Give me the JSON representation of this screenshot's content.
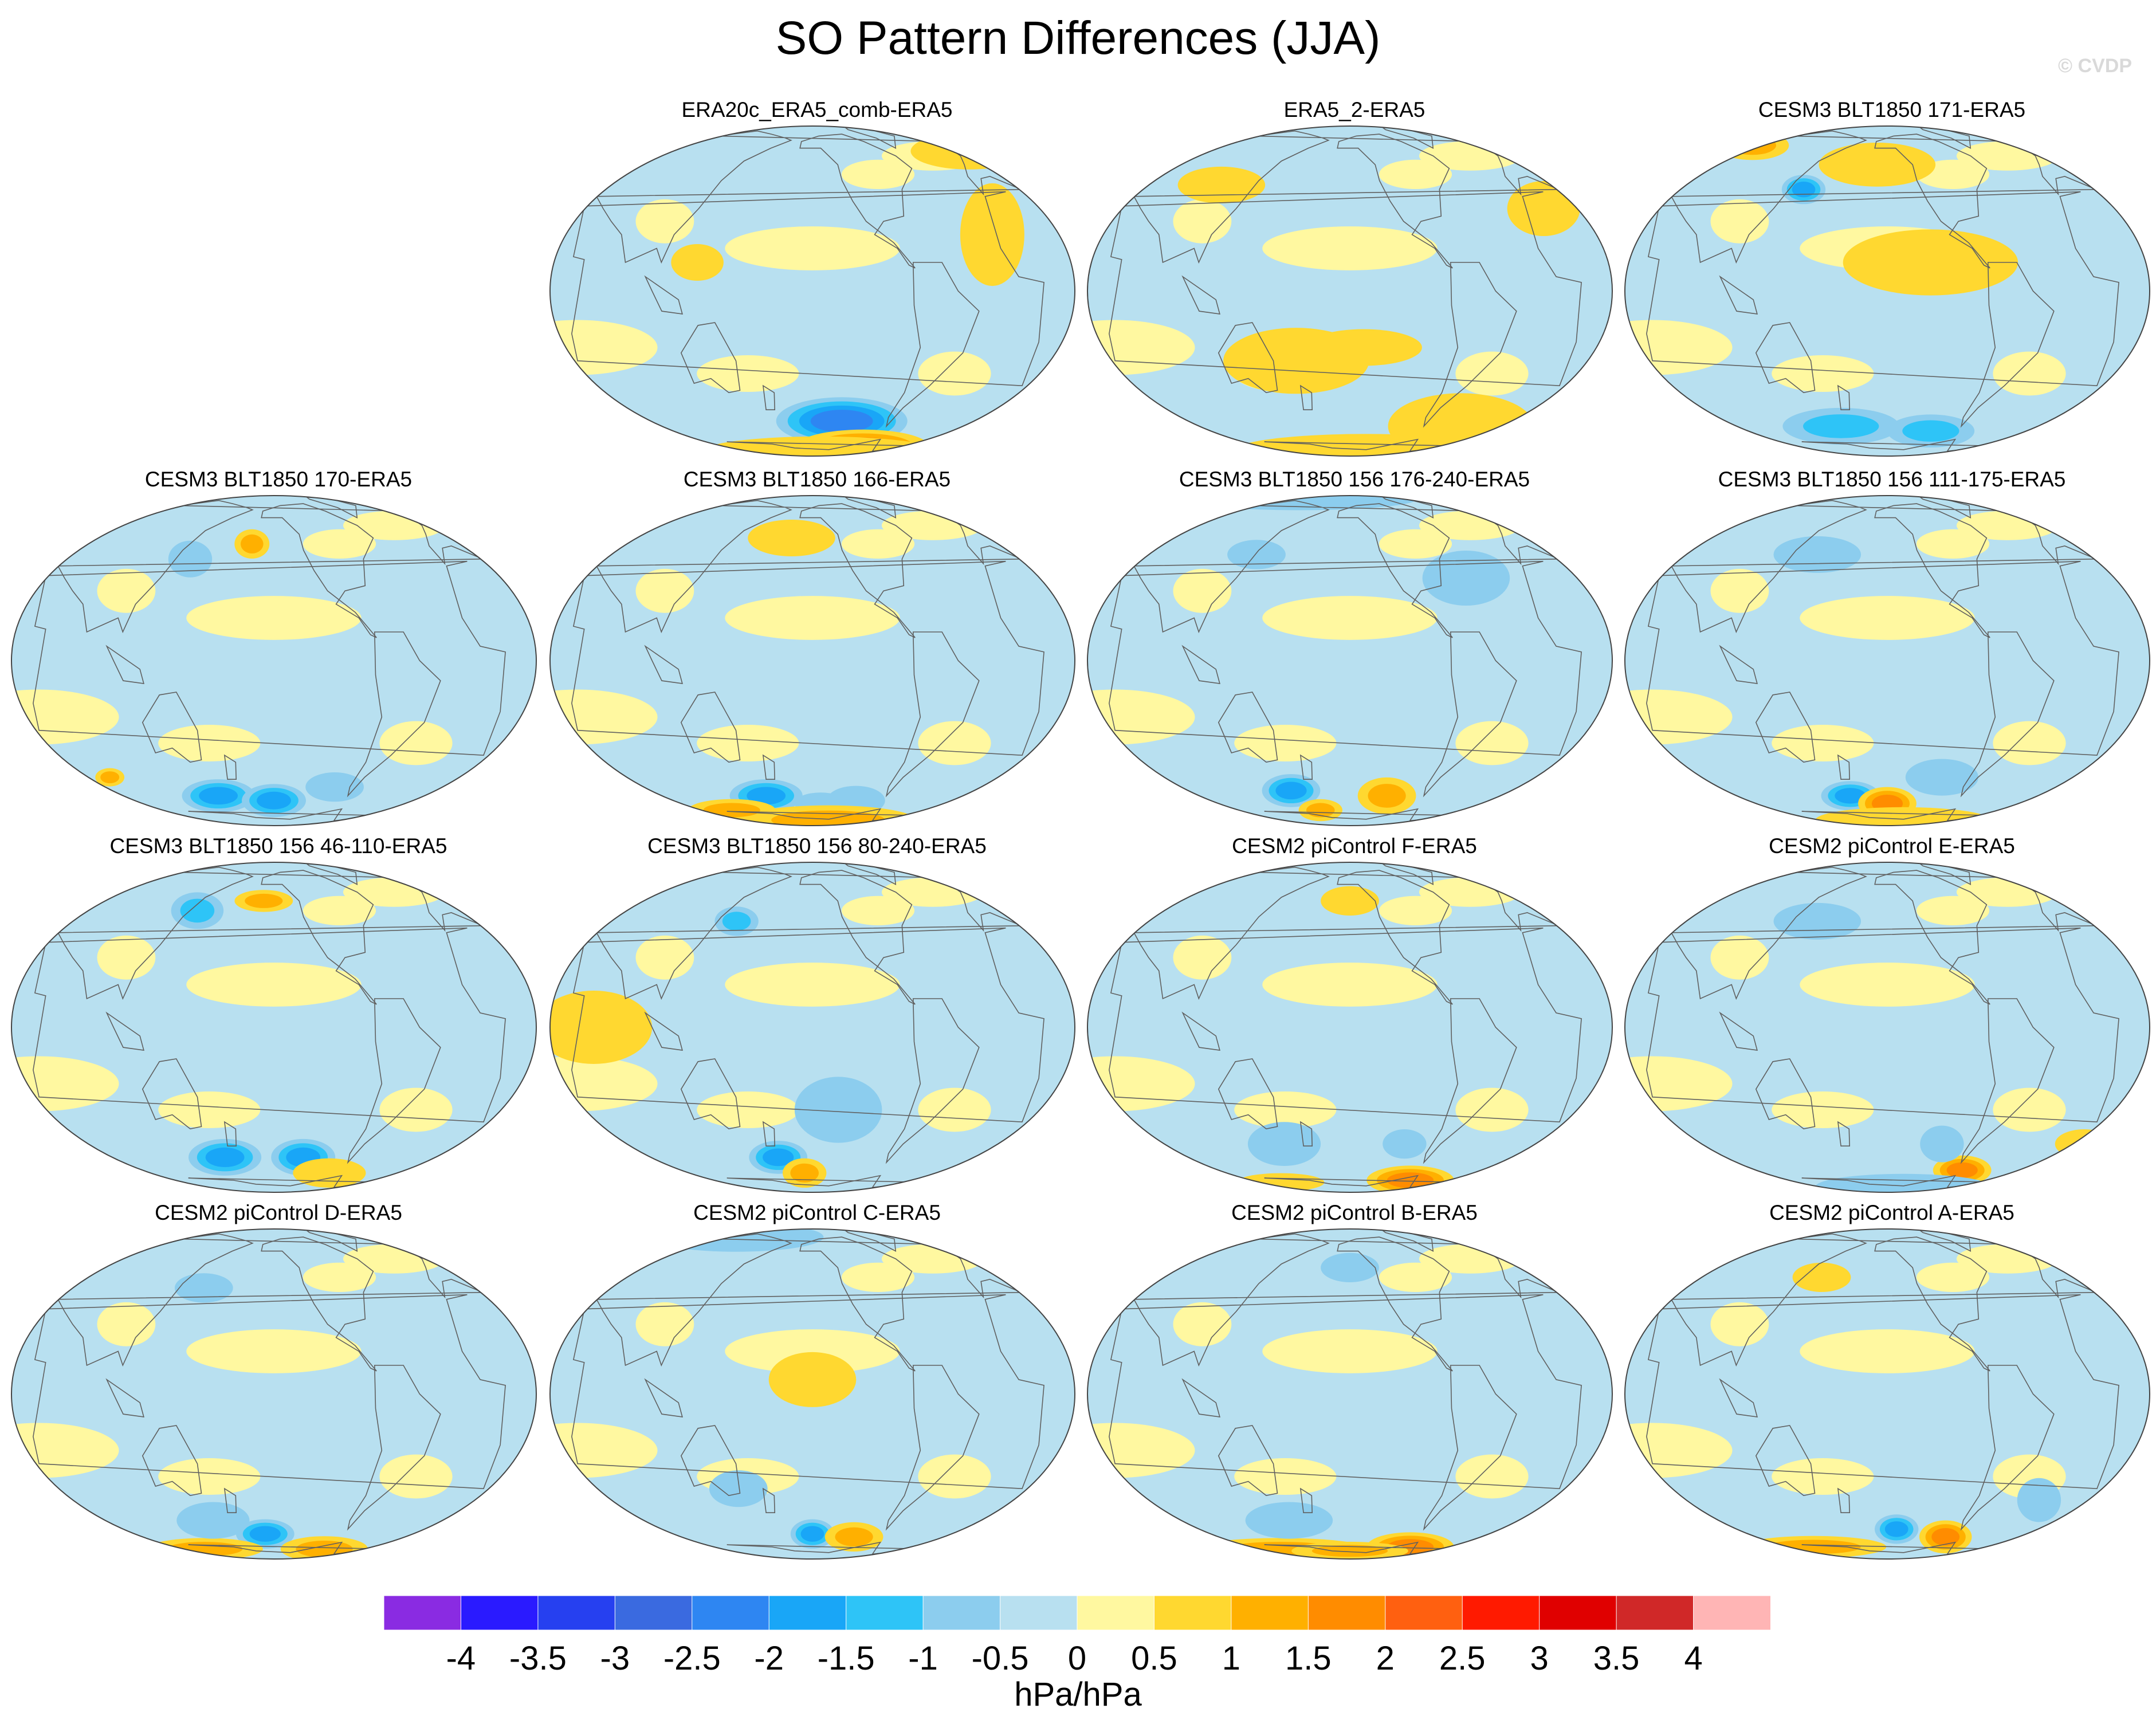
{
  "title": "SO Pattern Differences (JJA)",
  "credit": "© CVDP",
  "panels": [
    {
      "label": "ERA20c_ERA5_comb-ERA5",
      "features": [
        {
          "lon": -120,
          "lat": -52,
          "lev": -2.0,
          "rx": 45,
          "ry": 13
        },
        {
          "lon": -70,
          "lat": -70,
          "lev": 1.5,
          "rx": 45,
          "ry": 9
        },
        {
          "lon": -135,
          "lat": -76,
          "lev": 0.5,
          "rx": 80,
          "ry": 8
        },
        {
          "lon": 30,
          "lat": 58,
          "lev": 0.5,
          "rx": 40,
          "ry": 10
        },
        {
          "lon": -20,
          "lat": 20,
          "lev": 0.5,
          "rx": 22,
          "ry": 28
        },
        {
          "lon": 130,
          "lat": 10,
          "lev": 0.5,
          "rx": 18,
          "ry": 10
        }
      ]
    },
    {
      "label": "ERA5_2-ERA5",
      "features": [
        {
          "lon": 170,
          "lat": -25,
          "lev": 0.5,
          "rx": 50,
          "ry": 18
        },
        {
          "lon": -140,
          "lat": -20,
          "lev": 0.5,
          "rx": 40,
          "ry": 10
        },
        {
          "lon": -30,
          "lat": -55,
          "lev": 0.5,
          "rx": 50,
          "ry": 18
        },
        {
          "lon": -120,
          "lat": -75,
          "lev": 0.5,
          "rx": 90,
          "ry": 9
        },
        {
          "lon": 100,
          "lat": 40,
          "lev": 0.5,
          "rx": 30,
          "ry": 10
        },
        {
          "lon": 0,
          "lat": 30,
          "lev": 0.5,
          "rx": 25,
          "ry": 15
        }
      ]
    },
    {
      "label": "CESM3 BLT1850 171-ERA5",
      "features": [
        {
          "lon": 140,
          "lat": 38,
          "lev": -1.5,
          "rx": 15,
          "ry": 8
        },
        {
          "lon": -160,
          "lat": 50,
          "lev": 0.5,
          "rx": 40,
          "ry": 12
        },
        {
          "lon": 160,
          "lat": -55,
          "lev": -1.0,
          "rx": 40,
          "ry": 10
        },
        {
          "lon": -100,
          "lat": -58,
          "lev": -1.0,
          "rx": 30,
          "ry": 9
        },
        {
          "lon": 40,
          "lat": 62,
          "lev": 1.0,
          "rx": 25,
          "ry": 8
        },
        {
          "lon": -120,
          "lat": 10,
          "lev": 0.5,
          "rx": 60,
          "ry": 18
        }
      ]
    },
    {
      "label": "CESM3 BLT1850 170-ERA5",
      "features": [
        {
          "lon": 150,
          "lat": -55,
          "lev": -1.5,
          "rx": 25,
          "ry": 9
        },
        {
          "lon": -150,
          "lat": -58,
          "lev": -1.5,
          "rx": 22,
          "ry": 9
        },
        {
          "lon": -90,
          "lat": -50,
          "lev": -0.5,
          "rx": 20,
          "ry": 8
        },
        {
          "lon": -170,
          "lat": 45,
          "lev": 1.0,
          "rx": 12,
          "ry": 8
        },
        {
          "lon": 140,
          "lat": 38,
          "lev": -0.5,
          "rx": 15,
          "ry": 10
        },
        {
          "lon": 60,
          "lat": -45,
          "lev": 1.0,
          "rx": 10,
          "ry": 5
        }
      ]
    },
    {
      "label": "CESM3 BLT1850 166-ERA5",
      "features": [
        {
          "lon": 160,
          "lat": -55,
          "lev": -1.5,
          "rx": 25,
          "ry": 9
        },
        {
          "lon": -140,
          "lat": -60,
          "lev": -0.5,
          "rx": 18,
          "ry": 6
        },
        {
          "lon": -100,
          "lat": -58,
          "lev": -0.5,
          "rx": 20,
          "ry": 8
        },
        {
          "lon": -120,
          "lat": -75,
          "lev": 1.0,
          "rx": 60,
          "ry": 8
        },
        {
          "lon": 100,
          "lat": -65,
          "lev": 1.0,
          "rx": 30,
          "ry": 6
        },
        {
          "lon": -170,
          "lat": 48,
          "lev": 0.5,
          "rx": 30,
          "ry": 10
        }
      ]
    },
    {
      "label": "CESM3 BLT1850 156 176-240-ERA5",
      "features": [
        {
          "lon": 150,
          "lat": -52,
          "lev": -1.5,
          "rx": 20,
          "ry": 9
        },
        {
          "lon": -110,
          "lat": -55,
          "lev": 1.0,
          "rx": 20,
          "ry": 10
        },
        {
          "lon": 170,
          "lat": -65,
          "lev": 1.0,
          "rx": 15,
          "ry": 6
        },
        {
          "lon": -60,
          "lat": 30,
          "lev": -0.5,
          "rx": 30,
          "ry": 15
        },
        {
          "lon": 100,
          "lat": 78,
          "lev": -0.5,
          "rx": 80,
          "ry": 6
        },
        {
          "lon": 130,
          "lat": 40,
          "lev": -0.5,
          "rx": 20,
          "ry": 8
        }
      ]
    },
    {
      "label": "CESM3 BLT1850 156 111-175-ERA5",
      "features": [
        {
          "lon": 170,
          "lat": -55,
          "lev": -1.5,
          "rx": 20,
          "ry": 8
        },
        {
          "lon": -150,
          "lat": -60,
          "lev": 1.5,
          "rx": 20,
          "ry": 9
        },
        {
          "lon": -120,
          "lat": -75,
          "lev": 0.5,
          "rx": 60,
          "ry": 7
        },
        {
          "lon": 150,
          "lat": 40,
          "lev": -0.5,
          "rx": 30,
          "ry": 10
        },
        {
          "lon": -100,
          "lat": -45,
          "lev": -0.5,
          "rx": 25,
          "ry": 10
        }
      ]
    },
    {
      "label": "CESM3 BLT1850 156 46-110-ERA5",
      "features": [
        {
          "lon": 160,
          "lat": -52,
          "lev": -1.5,
          "rx": 25,
          "ry": 10
        },
        {
          "lon": -120,
          "lat": -52,
          "lev": -1.5,
          "rx": 22,
          "ry": 10
        },
        {
          "lon": 140,
          "lat": 45,
          "lev": -1.0,
          "rx": 18,
          "ry": 10
        },
        {
          "lon": -160,
          "lat": 50,
          "lev": 1.0,
          "rx": 20,
          "ry": 6
        },
        {
          "lon": -80,
          "lat": -62,
          "lev": 0.5,
          "rx": 25,
          "ry": 8
        }
      ]
    },
    {
      "label": "CESM3 BLT1850 156 80-240-ERA5",
      "features": [
        {
          "lon": 175,
          "lat": -52,
          "lev": -1.5,
          "rx": 20,
          "ry": 9
        },
        {
          "lon": -160,
          "lat": -62,
          "lev": 1.0,
          "rx": 15,
          "ry": 8
        },
        {
          "lon": 145,
          "lat": 40,
          "lev": -1.0,
          "rx": 15,
          "ry": 8
        },
        {
          "lon": -130,
          "lat": -30,
          "lev": -0.5,
          "rx": 30,
          "ry": 18
        },
        {
          "lon": 60,
          "lat": 0,
          "lev": 0.5,
          "rx": 40,
          "ry": 20
        }
      ]
    },
    {
      "label": "CESM2 piControl F-ERA5",
      "features": [
        {
          "lon": -60,
          "lat": -68,
          "lev": 1.5,
          "rx": 30,
          "ry": 8
        },
        {
          "lon": 150,
          "lat": -45,
          "lev": -0.5,
          "rx": 25,
          "ry": 12
        },
        {
          "lon": -100,
          "lat": -45,
          "lev": -0.5,
          "rx": 15,
          "ry": 8
        },
        {
          "lon": 100,
          "lat": -70,
          "lev": 0.5,
          "rx": 30,
          "ry": 5
        },
        {
          "lon": -150,
          "lat": 50,
          "lev": 0.5,
          "rx": 20,
          "ry": 8
        }
      ]
    },
    {
      "label": "CESM2 piControl E-ERA5",
      "features": [
        {
          "lon": -60,
          "lat": -60,
          "lev": 1.5,
          "rx": 20,
          "ry": 8
        },
        {
          "lon": 150,
          "lat": 40,
          "lev": -0.5,
          "rx": 30,
          "ry": 10
        },
        {
          "lon": -100,
          "lat": -45,
          "lev": -0.5,
          "rx": 15,
          "ry": 10
        },
        {
          "lon": -120,
          "lat": -75,
          "lev": -0.5,
          "rx": 60,
          "ry": 7
        },
        {
          "lon": 30,
          "lat": -45,
          "lev": 0.5,
          "rx": 20,
          "ry": 8
        }
      ]
    },
    {
      "label": "CESM2 piControl D-ERA5",
      "features": [
        {
          "lon": -160,
          "lat": -58,
          "lev": -1.5,
          "rx": 20,
          "ry": 8
        },
        {
          "lon": -70,
          "lat": -70,
          "lev": 1.0,
          "rx": 30,
          "ry": 7
        },
        {
          "lon": 100,
          "lat": -70,
          "lev": 1.0,
          "rx": 40,
          "ry": 6
        },
        {
          "lon": 150,
          "lat": 40,
          "lev": -0.5,
          "rx": 20,
          "ry": 8
        },
        {
          "lon": 150,
          "lat": -50,
          "lev": -0.5,
          "rx": 25,
          "ry": 10
        }
      ]
    },
    {
      "label": "CESM2 piControl C-ERA5",
      "features": [
        {
          "lon": -150,
          "lat": -58,
          "lev": -1.5,
          "rx": 15,
          "ry": 8
        },
        {
          "lon": -100,
          "lat": -60,
          "lev": 1.0,
          "rx": 20,
          "ry": 8
        },
        {
          "lon": 80,
          "lat": 72,
          "lev": -0.5,
          "rx": 60,
          "ry": 8
        },
        {
          "lon": -150,
          "lat": 5,
          "lev": 0.5,
          "rx": 30,
          "ry": 15
        },
        {
          "lon": 150,
          "lat": -35,
          "lev": -0.5,
          "rx": 20,
          "ry": 10
        }
      ]
    },
    {
      "label": "CESM2 piControl B-ERA5",
      "features": [
        {
          "lon": -60,
          "lat": -68,
          "lev": 1.5,
          "rx": 30,
          "ry": 8
        },
        {
          "lon": 100,
          "lat": -70,
          "lev": 1.0,
          "rx": 60,
          "ry": 6
        },
        {
          "lon": -150,
          "lat": -72,
          "lev": 1.0,
          "rx": 40,
          "ry": 5
        },
        {
          "lon": 150,
          "lat": -50,
          "lev": -0.5,
          "rx": 30,
          "ry": 10
        },
        {
          "lon": -150,
          "lat": 50,
          "lev": -0.5,
          "rx": 20,
          "ry": 8
        }
      ]
    },
    {
      "label": "CESM2 piControl A-ERA5",
      "features": [
        {
          "lon": -140,
          "lat": -55,
          "lev": -1.5,
          "rx": 15,
          "ry": 8
        },
        {
          "lon": -80,
          "lat": -60,
          "lev": 1.5,
          "rx": 18,
          "ry": 9
        },
        {
          "lon": 100,
          "lat": -68,
          "lev": 1.0,
          "rx": 50,
          "ry": 6
        },
        {
          "lon": -20,
          "lat": -40,
          "lev": -0.5,
          "rx": 15,
          "ry": 12
        },
        {
          "lon": 150,
          "lat": 45,
          "lev": 0.5,
          "rx": 20,
          "ry": 8
        }
      ]
    }
  ],
  "colorbar": {
    "units": "hPa/hPa",
    "tick_labels": [
      "-4",
      "-3.5",
      "-3",
      "-2.5",
      "-2",
      "-1.5",
      "-1",
      "-0.5",
      "0",
      "0.5",
      "1",
      "1.5",
      "2",
      "2.5",
      "3",
      "3.5",
      "4"
    ],
    "colors": [
      "#8a2be2",
      "#2a1aff",
      "#2640f0",
      "#3a6ae0",
      "#2e86f2",
      "#19a6f7",
      "#2ec4f7",
      "#8ccdee",
      "#b8e0f0",
      "#fff8a0",
      "#ffd830",
      "#ffb000",
      "#ff8c00",
      "#ff6010",
      "#ff1a00",
      "#e00000",
      "#d02828",
      "#ffb5b5"
    ]
  },
  "colors": {
    "background_negative": "#b8e0f0",
    "background_positive": "#fff8a0",
    "coastline": "#606060",
    "outline": "#444444"
  }
}
